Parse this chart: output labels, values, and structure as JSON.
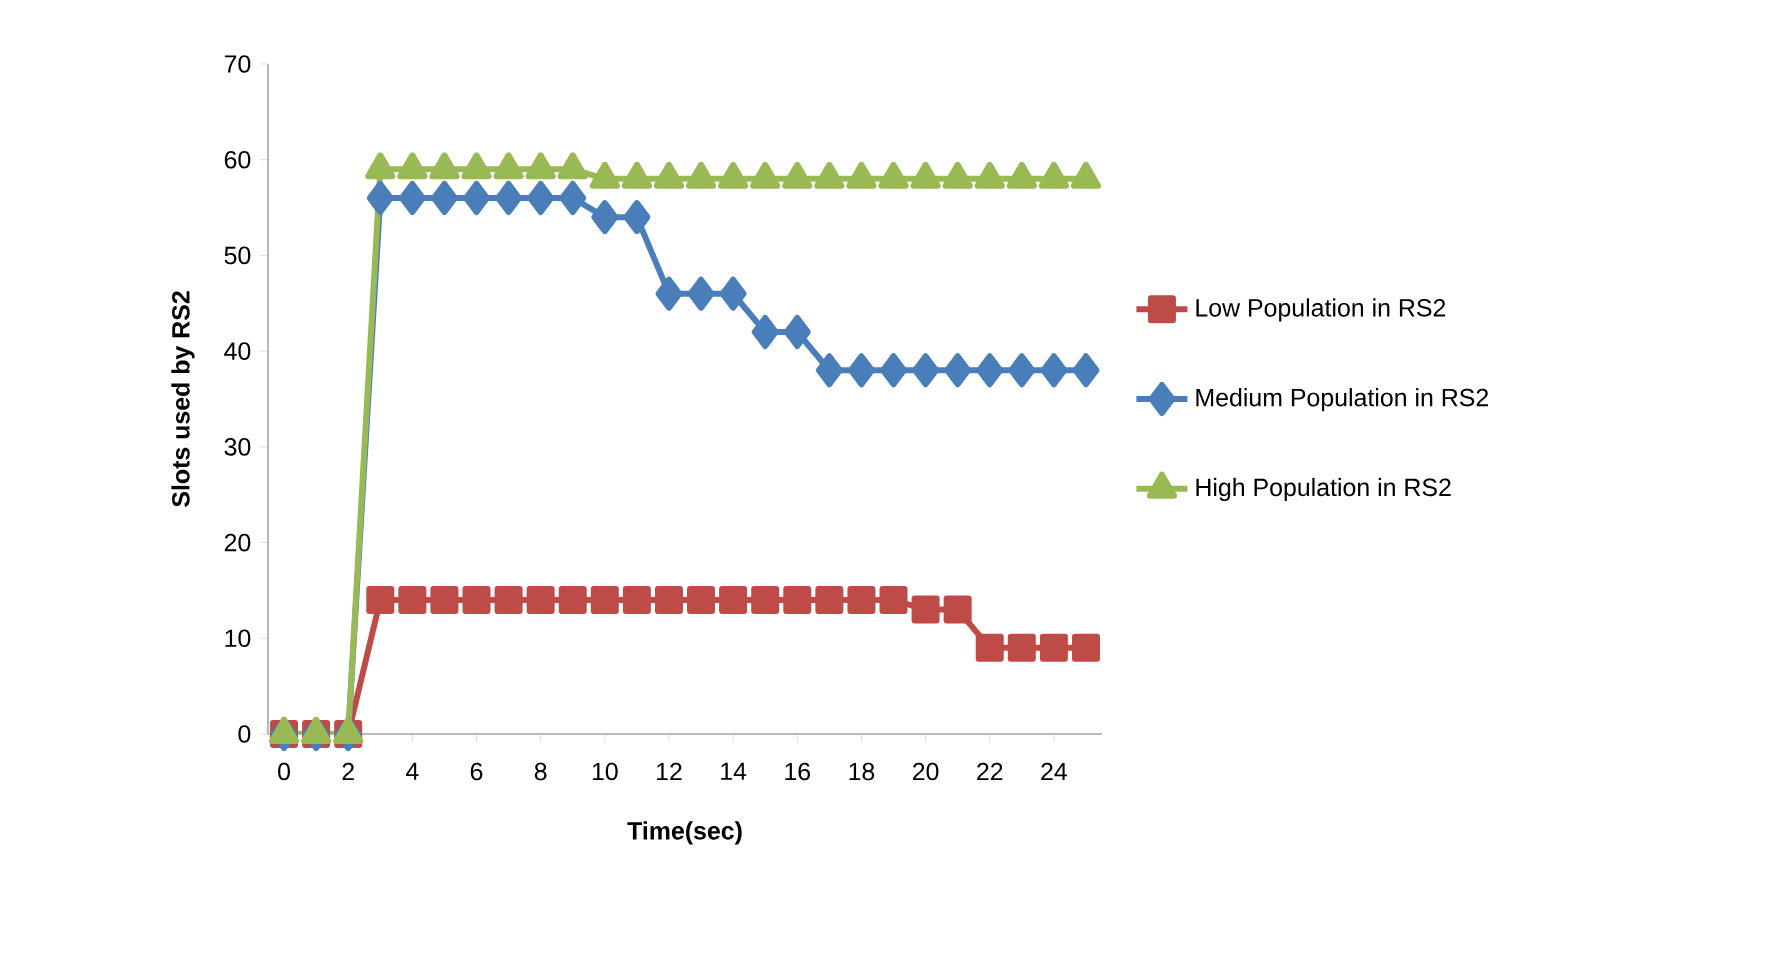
{
  "chart_data": {
    "type": "line",
    "xlabel": "Time(sec)",
    "ylabel": "Slots used by RS2",
    "x": [
      0,
      1,
      2,
      3,
      4,
      5,
      6,
      7,
      8,
      9,
      10,
      11,
      12,
      13,
      14,
      15,
      16,
      17,
      18,
      19,
      20,
      21,
      22,
      23,
      24,
      25
    ],
    "xlim": [
      -0.5,
      25.5
    ],
    "xticks": [
      0,
      2,
      4,
      6,
      8,
      10,
      12,
      14,
      16,
      18,
      20,
      22,
      24
    ],
    "ylim": [
      0,
      70
    ],
    "yticks": [
      0,
      10,
      20,
      30,
      40,
      50,
      60,
      70
    ],
    "grid": false,
    "legend": "right",
    "line_style": "solid",
    "series": [
      {
        "name": "Low Population in RS2",
        "color": "#be4b48",
        "marker": "square",
        "values": [
          0,
          0,
          0,
          14,
          14,
          14,
          14,
          14,
          14,
          14,
          14,
          14,
          14,
          14,
          14,
          14,
          14,
          14,
          14,
          14,
          13,
          13,
          9,
          9,
          9,
          9
        ]
      },
      {
        "name": "Medium Population in RS2",
        "color": "#4a7ebb",
        "marker": "diamond",
        "values": [
          0,
          0,
          0,
          56,
          56,
          56,
          56,
          56,
          56,
          56,
          54,
          54,
          46,
          46,
          46,
          42,
          42,
          38,
          38,
          38,
          38,
          38,
          38,
          38,
          38,
          38
        ]
      },
      {
        "name": "High Population in RS2",
        "color": "#98b954",
        "marker": "triangle",
        "values": [
          0,
          0,
          0,
          59,
          59,
          59,
          59,
          59,
          59,
          59,
          58,
          58,
          58,
          58,
          58,
          58,
          58,
          58,
          58,
          58,
          58,
          58,
          58,
          58,
          58,
          58
        ]
      }
    ]
  }
}
